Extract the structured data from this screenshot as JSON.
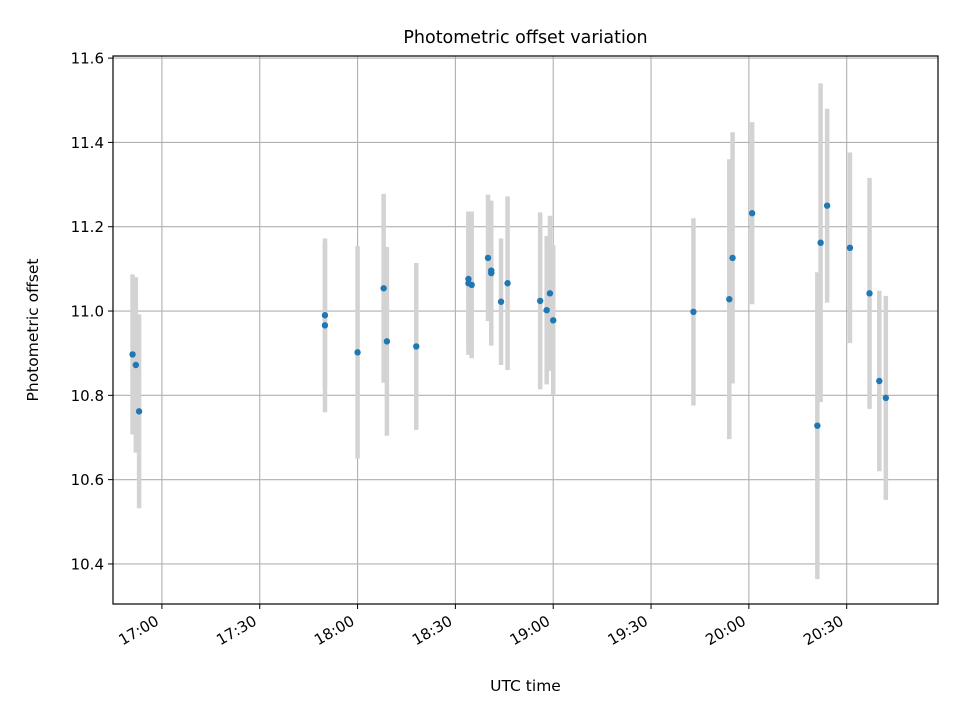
{
  "chart_data": {
    "type": "scatter",
    "title": "Photometric offset variation",
    "xlabel": "UTC time",
    "ylabel": "Photometric offset",
    "x_unit": "UTC HH:MM",
    "xlim": [
      "16:45",
      "20:58"
    ],
    "ylim": [
      10.305,
      11.605
    ],
    "x_ticks": [
      "17:00",
      "17:30",
      "18:00",
      "18:30",
      "19:00",
      "19:30",
      "20:00",
      "20:30"
    ],
    "y_ticks": [
      10.4,
      10.6,
      10.8,
      11.0,
      11.2,
      11.4,
      11.6
    ],
    "y_tick_labels": [
      "10.4",
      "10.6",
      "10.8",
      "11.0",
      "11.2",
      "11.4",
      "11.6"
    ],
    "grid": true,
    "marker_color": "#1f77b4",
    "errorbar_color": "#d3d3d3",
    "points": [
      {
        "x": "16:51",
        "y": 10.897,
        "ymin": 10.707,
        "ymax": 11.087
      },
      {
        "x": "16:52",
        "y": 10.872,
        "ymin": 10.664,
        "ymax": 11.08
      },
      {
        "x": "16:53",
        "y": 10.762,
        "ymin": 10.532,
        "ymax": 10.992
      },
      {
        "x": "17:50",
        "y": 10.99,
        "ymin": 10.818,
        "ymax": 11.162
      },
      {
        "x": "17:50",
        "y": 10.966,
        "ymin": 10.76,
        "ymax": 11.172
      },
      {
        "x": "18:00",
        "y": 10.902,
        "ymin": 10.65,
        "ymax": 11.154
      },
      {
        "x": "18:08",
        "y": 11.054,
        "ymin": 10.83,
        "ymax": 11.278
      },
      {
        "x": "18:09",
        "y": 10.928,
        "ymin": 10.704,
        "ymax": 11.152
      },
      {
        "x": "18:18",
        "y": 10.916,
        "ymin": 10.718,
        "ymax": 11.114
      },
      {
        "x": "18:34",
        "y": 11.076,
        "ymin": 10.916,
        "ymax": 11.236
      },
      {
        "x": "18:34",
        "y": 11.066,
        "ymin": 10.896,
        "ymax": 11.236
      },
      {
        "x": "18:35",
        "y": 11.062,
        "ymin": 10.888,
        "ymax": 11.236
      },
      {
        "x": "18:40",
        "y": 11.126,
        "ymin": 10.976,
        "ymax": 11.276
      },
      {
        "x": "18:41",
        "y": 11.09,
        "ymin": 10.918,
        "ymax": 11.262
      },
      {
        "x": "18:41",
        "y": 11.096,
        "ymin": 10.932,
        "ymax": 11.26
      },
      {
        "x": "18:44",
        "y": 11.022,
        "ymin": 10.872,
        "ymax": 11.172
      },
      {
        "x": "18:46",
        "y": 11.066,
        "ymin": 10.86,
        "ymax": 11.272
      },
      {
        "x": "18:56",
        "y": 11.024,
        "ymin": 10.814,
        "ymax": 11.234
      },
      {
        "x": "18:58",
        "y": 11.002,
        "ymin": 10.826,
        "ymax": 11.178
      },
      {
        "x": "18:59",
        "y": 11.042,
        "ymin": 10.858,
        "ymax": 11.226
      },
      {
        "x": "19:00",
        "y": 10.978,
        "ymin": 10.8,
        "ymax": 11.156
      },
      {
        "x": "19:43",
        "y": 10.998,
        "ymin": 10.776,
        "ymax": 11.22
      },
      {
        "x": "19:54",
        "y": 11.028,
        "ymin": 10.696,
        "ymax": 11.36
      },
      {
        "x": "19:55",
        "y": 11.126,
        "ymin": 10.828,
        "ymax": 11.424
      },
      {
        "x": "20:01",
        "y": 11.232,
        "ymin": 11.016,
        "ymax": 11.448
      },
      {
        "x": "20:21",
        "y": 10.728,
        "ymin": 10.364,
        "ymax": 11.092
      },
      {
        "x": "20:22",
        "y": 11.162,
        "ymin": 10.784,
        "ymax": 11.54
      },
      {
        "x": "20:24",
        "y": 11.25,
        "ymin": 11.02,
        "ymax": 11.48
      },
      {
        "x": "20:31",
        "y": 11.15,
        "ymin": 10.924,
        "ymax": 11.376
      },
      {
        "x": "20:37",
        "y": 11.042,
        "ymin": 10.768,
        "ymax": 11.316
      },
      {
        "x": "20:40",
        "y": 10.834,
        "ymin": 10.62,
        "ymax": 11.048
      },
      {
        "x": "20:42",
        "y": 10.794,
        "ymin": 10.552,
        "ymax": 11.036
      }
    ]
  }
}
